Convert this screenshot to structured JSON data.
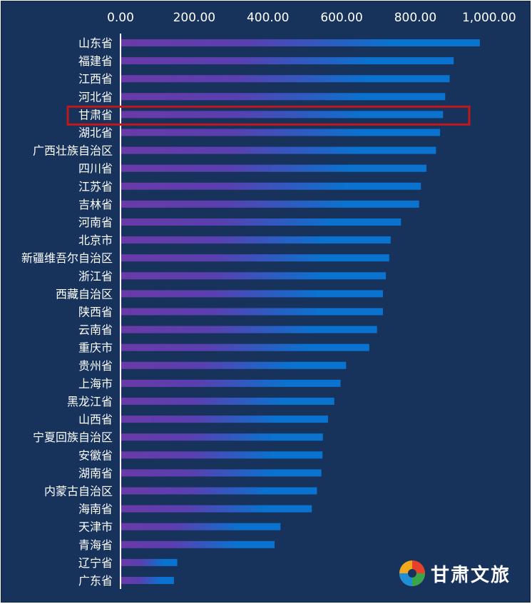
{
  "logo": {
    "text": "甘肃文旅"
  },
  "colors": {
    "background": "#17335c",
    "bar_end": "#0a72cf",
    "bar_start": "#6a3aa8",
    "axis": "#ffffff",
    "highlight": "#c0171b"
  },
  "chart_data": {
    "type": "bar",
    "orientation": "horizontal",
    "x_ticks": [
      "0.00",
      "200.00",
      "400.00",
      "600.00",
      "800.00",
      "1,000.00"
    ],
    "xlim": [
      0,
      1000
    ],
    "x_axis_position": "top",
    "grid": false,
    "highlighted_category": "甘肃省",
    "categories": [
      "山东省",
      "福建省",
      "江西省",
      "河北省",
      "甘肃省",
      "湖北省",
      "广西壮族自治区",
      "四川省",
      "江苏省",
      "吉林省",
      "河南省",
      "北京市",
      "新疆维吾尔自治区",
      "浙江省",
      "西藏自治区",
      "陕西省",
      "云南省",
      "重庆市",
      "贵州省",
      "上海市",
      "黑龙江省",
      "山西省",
      "宁夏回族自治区",
      "安徽省",
      "湖南省",
      "内蒙古自治区",
      "海南省",
      "天津市",
      "青海省",
      "辽宁省",
      "广东省"
    ],
    "values": [
      975,
      904,
      893,
      881,
      875,
      867,
      856,
      830,
      815,
      810,
      761,
      733,
      729,
      720,
      712,
      712,
      696,
      675,
      612,
      597,
      580,
      563,
      549,
      548,
      545,
      533,
      519,
      434,
      418,
      154,
      145
    ]
  }
}
